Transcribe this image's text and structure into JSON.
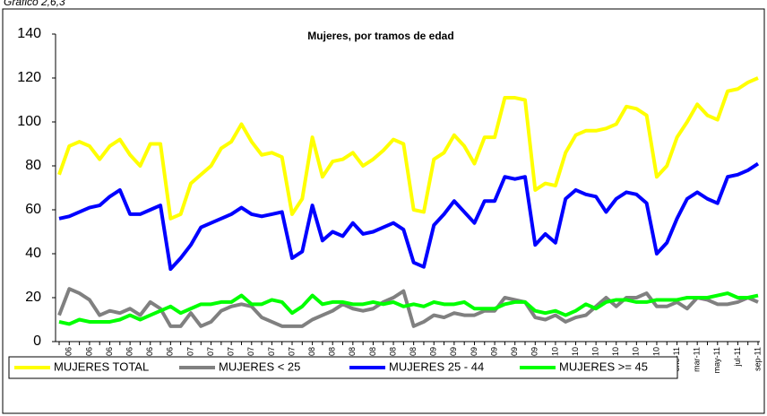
{
  "caption": "Gráfico 2,6,3",
  "chart_data": {
    "type": "line",
    "title": "Mujeres, por tramos de edad",
    "categories": [
      null,
      "ene-06",
      null,
      "mar-06",
      null,
      "may-06",
      null,
      "jul-06",
      null,
      "sep-06",
      null,
      "nov-06",
      null,
      "ene-07",
      null,
      "mar-07",
      null,
      "may-07",
      null,
      "jul-07",
      null,
      "sep-07",
      null,
      "nov-07",
      null,
      "ene-08",
      null,
      "mar-08",
      null,
      "may-08",
      null,
      "jul-08",
      null,
      "sep-08",
      null,
      "nov-08",
      null,
      "ene-09",
      null,
      "mar-09",
      null,
      "may-09",
      null,
      "jul-09",
      null,
      "sep-09",
      null,
      "nov-09",
      null,
      "ene-10",
      null,
      "mar-10",
      null,
      "may-10",
      null,
      "jul-10",
      null,
      "sep-10",
      null,
      "nov-10",
      null,
      "ene-11",
      null,
      "mar-11",
      null,
      "may-11",
      null,
      "jul-11",
      null,
      "sep-11"
    ],
    "series": [
      {
        "name": "MUJERES TOTAL",
        "color": "#ffff00",
        "values": [
          76,
          89,
          91,
          89,
          83,
          89,
          92,
          85,
          80,
          90,
          90,
          56,
          58,
          72,
          76,
          80,
          88,
          91,
          99,
          91,
          85,
          86,
          84,
          58,
          65,
          93,
          75,
          82,
          83,
          86,
          80,
          83,
          87,
          92,
          90,
          60,
          59,
          83,
          86,
          94,
          89,
          81,
          93,
          93,
          111,
          111,
          110,
          69,
          72,
          71,
          86,
          94,
          96,
          96,
          97,
          99,
          107,
          106,
          103,
          75,
          80,
          93,
          100,
          108,
          103,
          101,
          114,
          115,
          118,
          120
        ]
      },
      {
        "name": "MUJERES < 25",
        "color": "#808080",
        "values": [
          12,
          24,
          22,
          19,
          12,
          14,
          13,
          15,
          12,
          18,
          15,
          7,
          7,
          13,
          7,
          9,
          14,
          16,
          17,
          16,
          11,
          9,
          7,
          7,
          7,
          10,
          12,
          14,
          17,
          15,
          14,
          15,
          18,
          20,
          23,
          7,
          9,
          12,
          11,
          13,
          12,
          12,
          14,
          14,
          20,
          19,
          18,
          11,
          10,
          12,
          9,
          11,
          12,
          16,
          20,
          16,
          20,
          20,
          22,
          16,
          16,
          18,
          15,
          20,
          19,
          17,
          17,
          18,
          20,
          18
        ]
      },
      {
        "name": "MUJERES 25 - 44",
        "color": "#0000ff",
        "values": [
          56,
          57,
          59,
          61,
          62,
          66,
          69,
          58,
          58,
          60,
          62,
          33,
          38,
          44,
          52,
          54,
          56,
          58,
          61,
          58,
          57,
          58,
          59,
          38,
          41,
          62,
          46,
          50,
          48,
          54,
          49,
          50,
          52,
          54,
          51,
          36,
          34,
          53,
          58,
          64,
          59,
          54,
          64,
          64,
          75,
          74,
          75,
          44,
          49,
          45,
          65,
          69,
          67,
          66,
          59,
          65,
          68,
          67,
          63,
          40,
          45,
          56,
          65,
          68,
          65,
          63,
          75,
          76,
          78,
          81
        ]
      },
      {
        "name": "MUJERES >= 45",
        "color": "#00ff00",
        "values": [
          9,
          8,
          10,
          9,
          9,
          9,
          10,
          12,
          10,
          12,
          14,
          16,
          13,
          15,
          17,
          17,
          18,
          18,
          21,
          17,
          17,
          19,
          18,
          13,
          16,
          21,
          17,
          18,
          18,
          17,
          17,
          18,
          17,
          18,
          16,
          17,
          16,
          18,
          17,
          17,
          18,
          15,
          15,
          15,
          17,
          18,
          18,
          14,
          13,
          14,
          12,
          14,
          17,
          15,
          18,
          19,
          19,
          18,
          18,
          19,
          19,
          19,
          20,
          20,
          20,
          21,
          22,
          20,
          20,
          21
        ]
      }
    ],
    "ylim": [
      0,
      140
    ],
    "yticks": [
      0,
      20,
      40,
      60,
      80,
      100,
      120,
      140
    ],
    "grid": false,
    "legend": "bottom"
  }
}
